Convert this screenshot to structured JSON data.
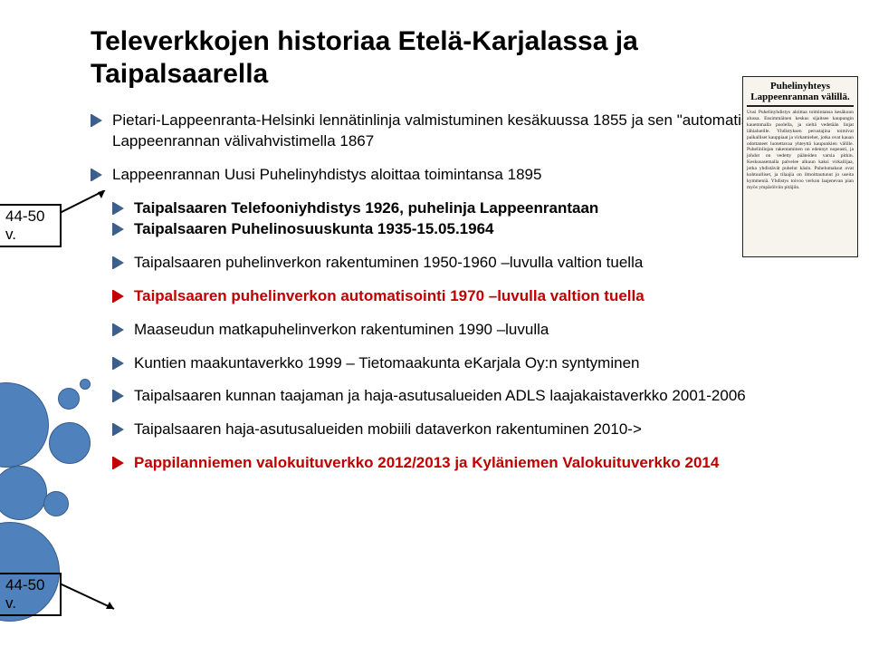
{
  "title": "Televerkkojen historiaa Etelä-Karjalassa ja Taipalsaarella",
  "annot1": "44-50 v.",
  "annot2": "44-50 v.",
  "clip": {
    "heading": "Puhelinyhteys Lappeenrannan välillä.",
    "body": "Uusi Puhelinyhdistys aloittaa toimintansa kesäkuun alussa. Ensimmäinen keskus sijaitsee kaupungin kauemmalla puolella, ja sieltä vedetään linjat lähialueille. Yhdistyksen perustajina toimivat paikalliset kauppiaat ja virkamiehet, jotka ovat kauan odottaneet luotettavaa yhteyttä kaupunkien välille. Puhelinlinjan rakentaminen on edennyt nopeasti, ja johdot on vedetty pääteiden varsia pitkin. Keskusasemalla palvelee alkuun kaksi virkailijaa, jotka yhdistävät puhelut käsin. Puhelumaksut ovat kohtuulliset, ja tilaajia on ilmoittautunut jo useita kymmeniä. Yhdistys toivoo verkon laajenevan pian myös ympäröiviin pitäjiin."
  },
  "colors": {
    "bubble_fill": "#4f81bd",
    "bubble_stroke": "#385d8a",
    "red": "#c00000",
    "blue": "#0070c0"
  },
  "bullets": [
    {
      "text_parts": [
        [
          "Pietari-Lappeenranta-Helsinki lennätinlinja valmistuminen kesäkuussa 1855 ja sen \"automatisointi Lappeenrannan välivahvistimella 1867",
          ""
        ]
      ],
      "indent": false,
      "gapAfter": true
    },
    {
      "text_parts": [
        [
          "Lappeenrannan Uusi Puhelinyhdistys aloittaa toimintansa 1895",
          ""
        ]
      ],
      "indent": false,
      "gapAfter": true
    },
    {
      "text_parts": [
        [
          "Taipalsaaren Telefooniyhdistys 1926, puhelinja Lappeenrantaan",
          "bold"
        ]
      ],
      "indent": true,
      "gapAfter": false,
      "tight": true
    },
    {
      "text_parts": [
        [
          "Taipalsaaren Puhelinosuuskunta 1935-15.05.1964",
          "bold"
        ]
      ],
      "indent": true,
      "gapAfter": true,
      "tight": true
    },
    {
      "text_parts": [
        [
          "Taipalsaaren puhelinverkon rakentuminen 1950-1960 –luvulla valtion tuella",
          ""
        ]
      ],
      "indent": true,
      "gapAfter": true
    },
    {
      "text_parts": [
        [
          "Taipalsaaren puhelinverkon automatisointi 1970 –luvulla valtion tuella",
          "redbold"
        ]
      ],
      "indent": true,
      "gapAfter": true
    },
    {
      "text_parts": [
        [
          "Maaseudun matkapuhelinverkon rakentuminen 1990 –luvulla",
          ""
        ]
      ],
      "indent": true,
      "gapAfter": true
    },
    {
      "text_parts": [
        [
          "Kuntien maakuntaverkko 1999 – Tietomaakunta eKarjala Oy:n syntyminen",
          ""
        ]
      ],
      "indent": true,
      "gapAfter": true
    },
    {
      "text_parts": [
        [
          "Taipalsaaren kunnan taajaman ja haja-asutusalueiden ADLS laajakaistaverkko 2001-2006",
          ""
        ]
      ],
      "indent": true,
      "gapAfter": true
    },
    {
      "text_parts": [
        [
          "Taipalsaaren haja-asutusalueiden mobiili dataverkon rakentuminen 2010->",
          ""
        ]
      ],
      "indent": true,
      "gapAfter": true
    },
    {
      "text_parts": [
        [
          "Pappilanniemen valokuituverkko 2012/2013 ja Kyläniemen Valokuituverkko 2014",
          "redbold"
        ]
      ],
      "indent": true,
      "gapAfter": false
    }
  ]
}
